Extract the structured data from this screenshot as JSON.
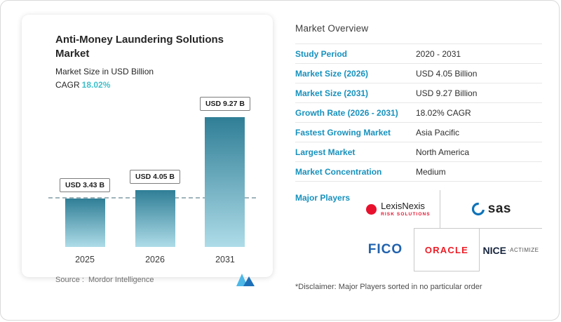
{
  "chart_card": {
    "title": "Anti-Money Laundering Solutions Market",
    "subtitle": "Market Size in USD Billion",
    "cagr_label": "CAGR",
    "cagr_value": "18.02%",
    "source_label": "Source :",
    "source_value": "Mordor Intelligence"
  },
  "chart_data": {
    "type": "bar",
    "title": "Anti-Money Laundering Solutions Market",
    "ylabel": "Market Size in USD Billion",
    "categories": [
      "2025",
      "2026",
      "2031"
    ],
    "values": [
      3.43,
      4.05,
      9.27
    ],
    "labels": [
      "USD 3.43 B",
      "USD 4.05 B",
      "USD 9.27 B"
    ],
    "ylim": [
      0,
      10
    ],
    "dashed_line_at": 3.43,
    "grid": false,
    "legend": false
  },
  "overview": {
    "heading": "Market Overview",
    "rows": [
      {
        "label": "Study Period",
        "value": "2020 - 2031"
      },
      {
        "label": "Market Size (2026)",
        "value": "USD 4.05 Billion"
      },
      {
        "label": "Market Size (2031)",
        "value": "USD 9.27 Billion"
      },
      {
        "label": "Growth Rate (2026 - 2031)",
        "value": "18.02% CAGR"
      },
      {
        "label": "Fastest Growing Market",
        "value": "Asia Pacific"
      },
      {
        "label": "Largest Market",
        "value": "North America"
      },
      {
        "label": "Market Concentration",
        "value": "Medium"
      }
    ],
    "major_players_label": "Major Players",
    "players": {
      "lexisnexis": {
        "name": "LexisNexis",
        "sub": "RISK SOLUTIONS"
      },
      "sas": "sas",
      "fico": "FICO",
      "oracle": "ORACLE",
      "nice": {
        "name": "NICE",
        "sub": "·ACTIMIZE"
      }
    },
    "disclaimer": "*Disclaimer: Major Players sorted in no particular order"
  },
  "colors": {
    "label_blue": "#1791bd",
    "cagr_teal": "#3ec0cb",
    "bar_top": "#2f7e96",
    "bar_bottom": "#aedce8"
  }
}
